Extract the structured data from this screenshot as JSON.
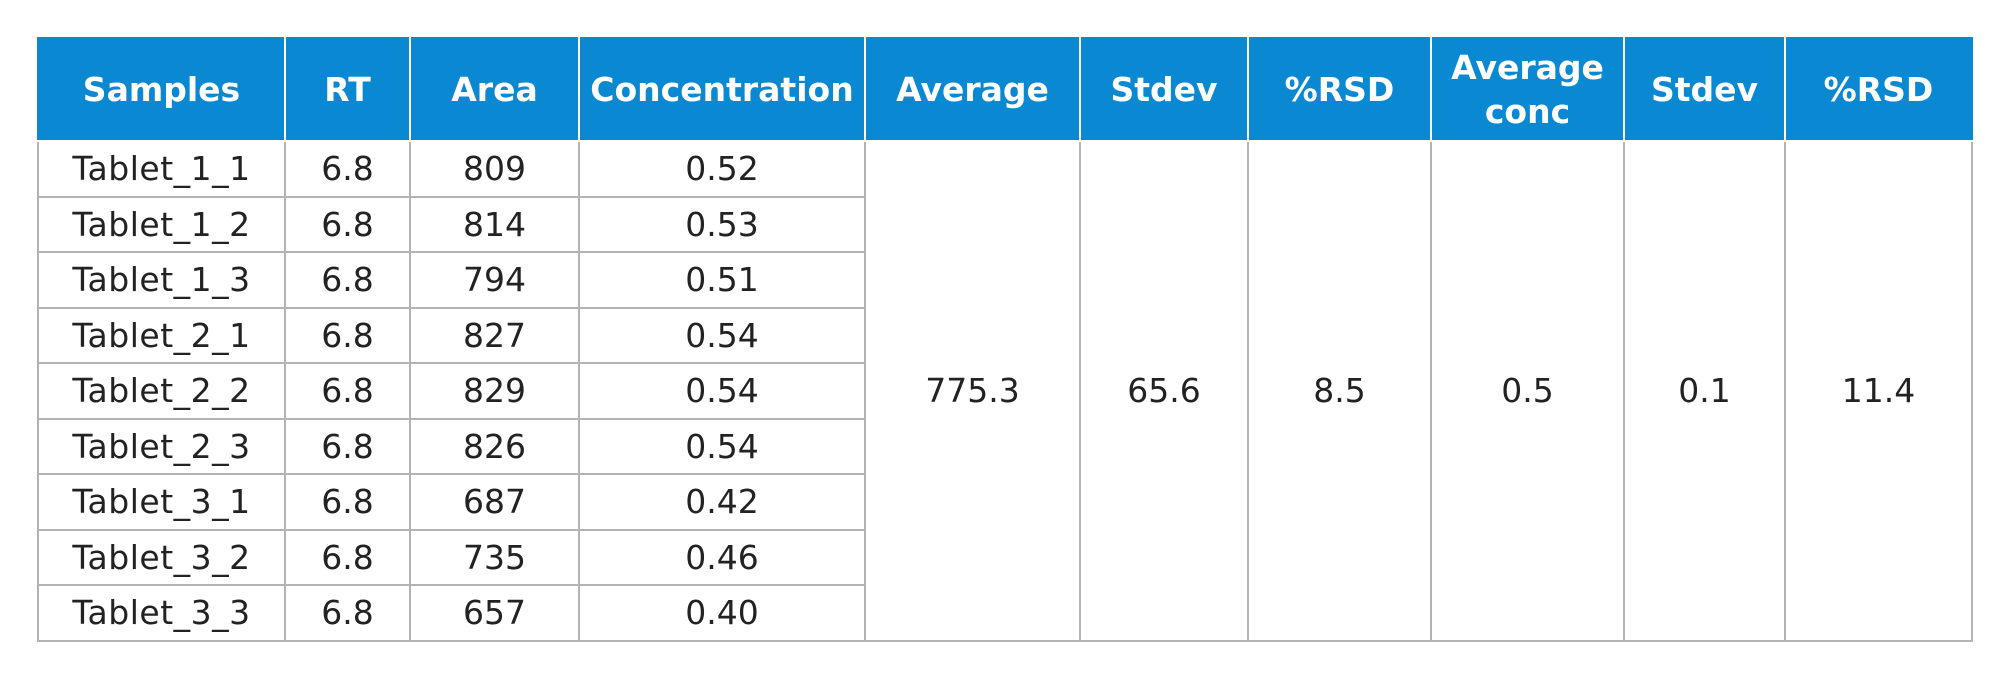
{
  "table": {
    "headers": [
      "Samples",
      "RT",
      "Area",
      "Concentration",
      "Average",
      "Stdev",
      "%RSD",
      "Average conc",
      "Stdev",
      "%RSD"
    ],
    "rows": [
      {
        "sample": "Tablet_1_1",
        "rt": "6.8",
        "area": "809",
        "concentration": "0.52"
      },
      {
        "sample": "Tablet_1_2",
        "rt": "6.8",
        "area": "814",
        "concentration": "0.53"
      },
      {
        "sample": "Tablet_1_3",
        "rt": "6.8",
        "area": "794",
        "concentration": "0.51"
      },
      {
        "sample": "Tablet_2_1",
        "rt": "6.8",
        "area": "827",
        "concentration": "0.54"
      },
      {
        "sample": "Tablet_2_2",
        "rt": "6.8",
        "area": "829",
        "concentration": "0.54"
      },
      {
        "sample": "Tablet_2_3",
        "rt": "6.8",
        "area": "826",
        "concentration": "0.54"
      },
      {
        "sample": "Tablet_3_1",
        "rt": "6.8",
        "area": "687",
        "concentration": "0.42"
      },
      {
        "sample": "Tablet_3_2",
        "rt": "6.8",
        "area": "735",
        "concentration": "0.46"
      },
      {
        "sample": "Tablet_3_3",
        "rt": "6.8",
        "area": "657",
        "concentration": "0.40"
      }
    ],
    "summary": {
      "average_area": "775.3",
      "stdev_area": "65.6",
      "rsd_area": "8.5",
      "average_conc": "0.5",
      "stdev_conc": "0.1",
      "rsd_conc": "11.4"
    }
  },
  "colors": {
    "header_bg": "#0a89d2",
    "header_text": "#ffffff",
    "border": "#b3b3b3"
  }
}
